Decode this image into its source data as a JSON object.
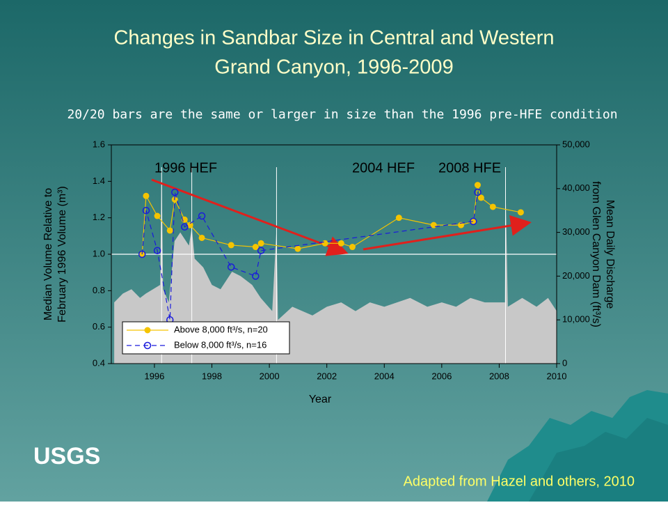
{
  "slide": {
    "logo": "USGS",
    "credit": "Adapted from Hazel and others, 2010"
  },
  "chart_data": {
    "type": "line",
    "title": [
      "Changes in Sandbar Size in Central and Western",
      "Grand Canyon, 1996-2009"
    ],
    "subtitle": "20/20 bars are the same or larger in size than the 1996 pre-HFE condition",
    "xlabel": "Year",
    "ylabel": [
      "Median Volume Relative to",
      "February 1996 Volume (m³)"
    ],
    "y2label": [
      "Mean Daily Discharge",
      "from Glen Canyon Dam (ft³/s)"
    ],
    "annotations": [
      "1996 HEF",
      "2004 HEF",
      "2008 HFE"
    ],
    "xlim": [
      1994.5,
      2010
    ],
    "xticks": [
      1996,
      1998,
      2000,
      2002,
      2004,
      2006,
      2008,
      2010
    ],
    "ylim": [
      0.4,
      1.6
    ],
    "yticks": [
      0.4,
      0.6,
      0.8,
      {
        "value": 1,
        "label": "1.0"
      },
      1.2,
      1.4,
      1.6
    ],
    "y2lim": [
      0,
      50000
    ],
    "y2ticks": [
      0,
      {
        "value": 10000,
        "label": "10,000"
      },
      {
        "value": 20000,
        "label": "20,000"
      },
      {
        "value": 30000,
        "label": "30,000"
      },
      {
        "value": 40000,
        "label": "40,000"
      },
      {
        "value": 50000,
        "label": "50,000"
      }
    ],
    "series": [
      {
        "axis": "y2",
        "color": "#c8c8c8",
        "x": [
          1994.6,
          1994.9,
          1995.2,
          1995.5,
          1995.7,
          1996.2,
          1996.25,
          1996.3,
          1996.5,
          1996.7,
          1996.9,
          1997.2,
          1997.3,
          1997.4,
          1997.7,
          1998.0,
          1998.3,
          1998.7,
          1999.0,
          1999.4,
          1999.7,
          2000.1,
          2000.25,
          2000.3,
          2000.8,
          2001.5,
          2002,
          2002.5,
          2003,
          2003.5,
          2004,
          2004.9,
          2005.5,
          2006,
          2006.5,
          2007,
          2007.5,
          2008.2,
          2008.22,
          2008.3,
          2008.8,
          2009.3,
          2009.7,
          2010
        ],
        "values": [
          14000,
          16000,
          17000,
          15000,
          16000,
          18000,
          45000,
          17000,
          14000,
          28000,
          30000,
          27000,
          31000,
          24000,
          22000,
          18000,
          17000,
          21000,
          20000,
          18000,
          15000,
          12000,
          31000,
          10000,
          13000,
          11000,
          13000,
          14000,
          12000,
          14000,
          13000,
          15000,
          13000,
          14000,
          13000,
          15000,
          14000,
          14000,
          41000,
          13000,
          15000,
          13000,
          15000,
          12000
        ]
      },
      {
        "name": "Above 8,000 ft³/s, n=20",
        "color": "#f5c400",
        "x": [
          1995.57,
          1995.71,
          1996.1,
          1996.54,
          1996.71,
          1997.05,
          1997.24,
          1997.65,
          1998.67,
          1999.52,
          1999.71,
          2000.99,
          2001.94,
          2002.5,
          2002.89,
          2004.51,
          2005.72,
          2006.67,
          2007.1,
          2007.25,
          2007.37,
          2007.78,
          2008.75
        ],
        "values": [
          1.0,
          1.32,
          1.21,
          1.13,
          1.3,
          1.19,
          1.16,
          1.09,
          1.05,
          1.04,
          1.06,
          1.03,
          1.06,
          1.06,
          1.04,
          1.2,
          1.16,
          1.16,
          1.18,
          1.38,
          1.31,
          1.26,
          1.23
        ]
      },
      {
        "name": "Below 8,000 ft³/s, n=16",
        "color": "#1a1adc",
        "x": [
          1995.57,
          1995.71,
          1996.1,
          1996.54,
          1996.71,
          1997.05,
          1997.65,
          1998.67,
          1999.52,
          1999.71,
          2007.1,
          2007.25
        ],
        "values": [
          1.0,
          1.24,
          1.02,
          0.64,
          1.34,
          1.15,
          1.21,
          0.93,
          0.88,
          1.02,
          1.18,
          1.34
        ]
      }
    ]
  }
}
